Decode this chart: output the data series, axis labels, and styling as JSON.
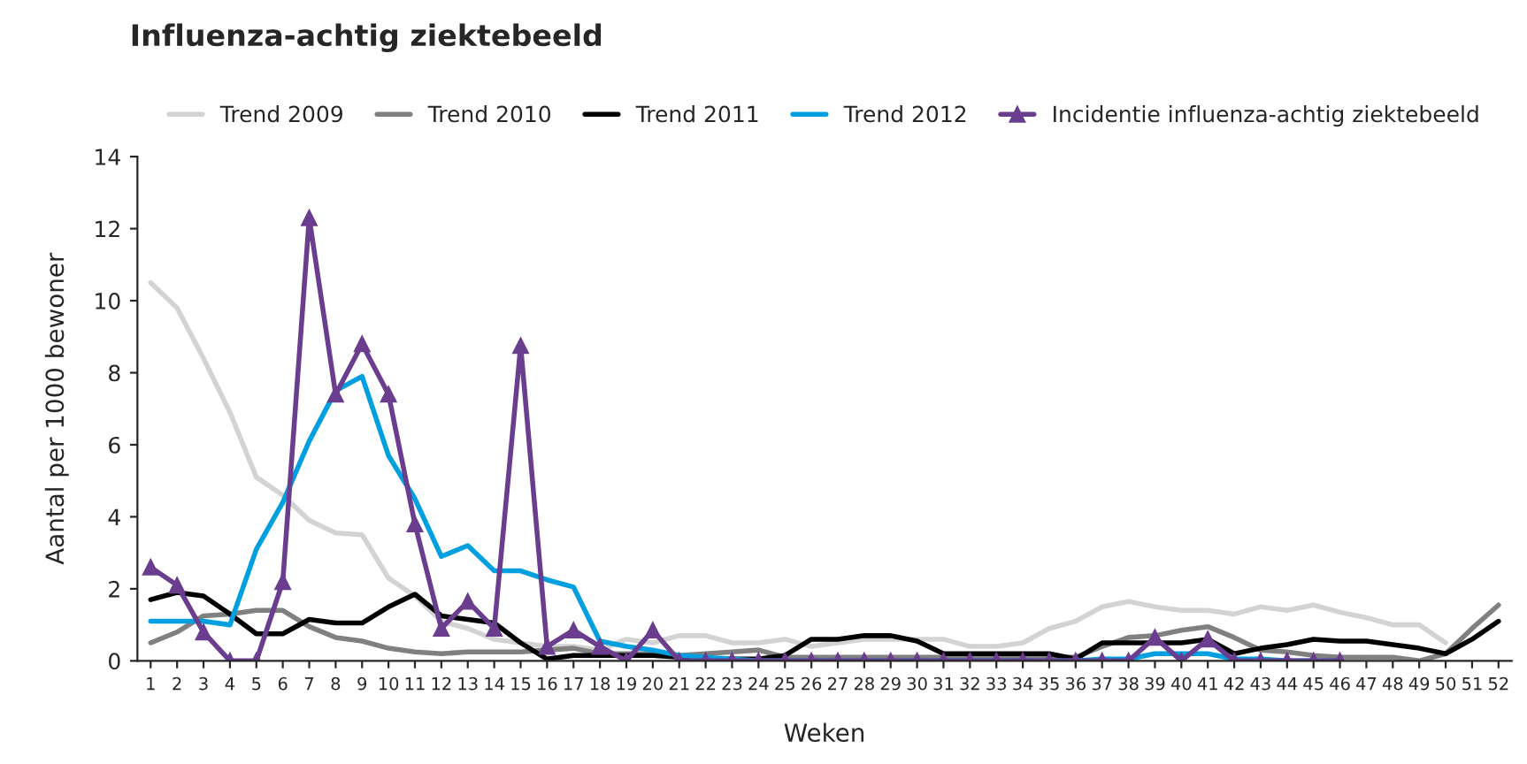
{
  "chart_data": {
    "type": "line",
    "title": "Influenza-achtig ziektebeeld",
    "xlabel": "Weken",
    "ylabel": "Aantal per 1000 bewoner",
    "categories": [
      "1",
      "2",
      "3",
      "4",
      "5",
      "6",
      "7",
      "8",
      "9",
      "10",
      "11",
      "12",
      "13",
      "14",
      "15",
      "16",
      "17",
      "18",
      "19",
      "20",
      "21",
      "22",
      "23",
      "24",
      "25",
      "26",
      "27",
      "28",
      "29",
      "30",
      "31",
      "32",
      "33",
      "34",
      "35",
      "36",
      "37",
      "38",
      "39",
      "40",
      "41",
      "42",
      "43",
      "44",
      "45",
      "46",
      "47",
      "48",
      "49",
      "50",
      "51",
      "52"
    ],
    "series": [
      {
        "name": "Trend 2009",
        "color": "#d3d3d3",
        "marker": "none",
        "values": [
          10.5,
          9.8,
          8.4,
          6.9,
          5.1,
          4.6,
          3.9,
          3.55,
          3.5,
          2.3,
          1.8,
          1.1,
          0.9,
          0.6,
          0.5,
          0.4,
          0.4,
          0.3,
          0.6,
          0.5,
          0.7,
          0.7,
          0.5,
          0.5,
          0.6,
          0.4,
          0.5,
          0.6,
          0.6,
          0.6,
          0.6,
          0.4,
          0.4,
          0.5,
          0.9,
          1.1,
          1.5,
          1.65,
          1.5,
          1.4,
          1.4,
          1.3,
          1.5,
          1.4,
          1.55,
          1.35,
          1.2,
          1.0,
          1.0,
          0.5,
          null,
          null
        ]
      },
      {
        "name": "Trend 2010",
        "color": "#808080",
        "marker": "none",
        "values": [
          0.5,
          0.8,
          1.25,
          1.3,
          1.4,
          1.4,
          0.95,
          0.65,
          0.55,
          0.35,
          0.25,
          0.2,
          0.25,
          0.25,
          0.25,
          0.3,
          0.35,
          0.2,
          0.2,
          0.2,
          0.15,
          0.2,
          0.25,
          0.3,
          0.1,
          0.1,
          0.1,
          0.1,
          0.1,
          0.1,
          0.1,
          0.1,
          0.1,
          0.1,
          0.1,
          0.1,
          0.4,
          0.65,
          0.7,
          0.85,
          0.95,
          0.65,
          0.3,
          0.25,
          0.15,
          0.1,
          0.1,
          0.1,
          0.0,
          0.2,
          0.9,
          1.55
        ]
      },
      {
        "name": "Trend 2011",
        "color": "#000000",
        "marker": "none",
        "values": [
          1.7,
          1.9,
          1.8,
          1.3,
          0.75,
          0.75,
          1.15,
          1.05,
          1.05,
          1.5,
          1.85,
          1.25,
          1.15,
          1.05,
          0.5,
          0.05,
          0.15,
          0.15,
          0.15,
          0.15,
          0.1,
          0.05,
          0.05,
          0.05,
          0.15,
          0.6,
          0.6,
          0.7,
          0.7,
          0.55,
          0.2,
          0.2,
          0.2,
          0.2,
          0.2,
          0.05,
          0.5,
          0.5,
          0.5,
          0.5,
          0.6,
          0.2,
          0.35,
          0.45,
          0.6,
          0.55,
          0.55,
          0.45,
          0.35,
          0.2,
          0.6,
          1.1
        ]
      },
      {
        "name": "Trend 2012",
        "color": "#00a0e0",
        "marker": "none",
        "values": [
          1.1,
          1.1,
          1.1,
          1.0,
          3.1,
          4.4,
          6.1,
          7.5,
          7.9,
          5.7,
          4.5,
          2.9,
          3.2,
          2.5,
          2.5,
          2.25,
          2.05,
          0.55,
          0.4,
          0.3,
          0.15,
          0.1,
          0.05,
          0,
          0,
          0,
          0,
          0,
          0,
          0,
          0,
          0,
          0,
          0,
          0,
          0,
          0.05,
          0.05,
          0.2,
          0.2,
          0.2,
          0.05,
          0.05,
          0,
          0,
          0,
          null,
          null,
          null,
          null,
          null,
          null
        ]
      },
      {
        "name": "Incidentie influenza-achtig ziektebeeld",
        "color": "#6a3d8f",
        "marker": "triangle",
        "values": [
          2.6,
          2.1,
          0.8,
          0,
          0,
          2.2,
          12.3,
          7.4,
          8.8,
          7.4,
          3.8,
          0.9,
          1.65,
          0.9,
          8.75,
          0.4,
          0.85,
          0.4,
          0,
          0.85,
          0,
          0,
          0,
          0,
          0,
          0,
          0,
          0,
          0,
          0,
          0,
          0,
          0,
          0,
          0,
          0,
          0,
          0,
          0.65,
          0,
          0.6,
          0,
          0,
          0,
          0,
          0,
          null,
          null,
          null,
          null,
          null,
          null
        ]
      }
    ],
    "ylim": [
      0,
      14
    ],
    "yticks": [
      0,
      2,
      4,
      6,
      8,
      10,
      12,
      14
    ],
    "grid": false,
    "legend": "top",
    "line_style": "solid"
  }
}
